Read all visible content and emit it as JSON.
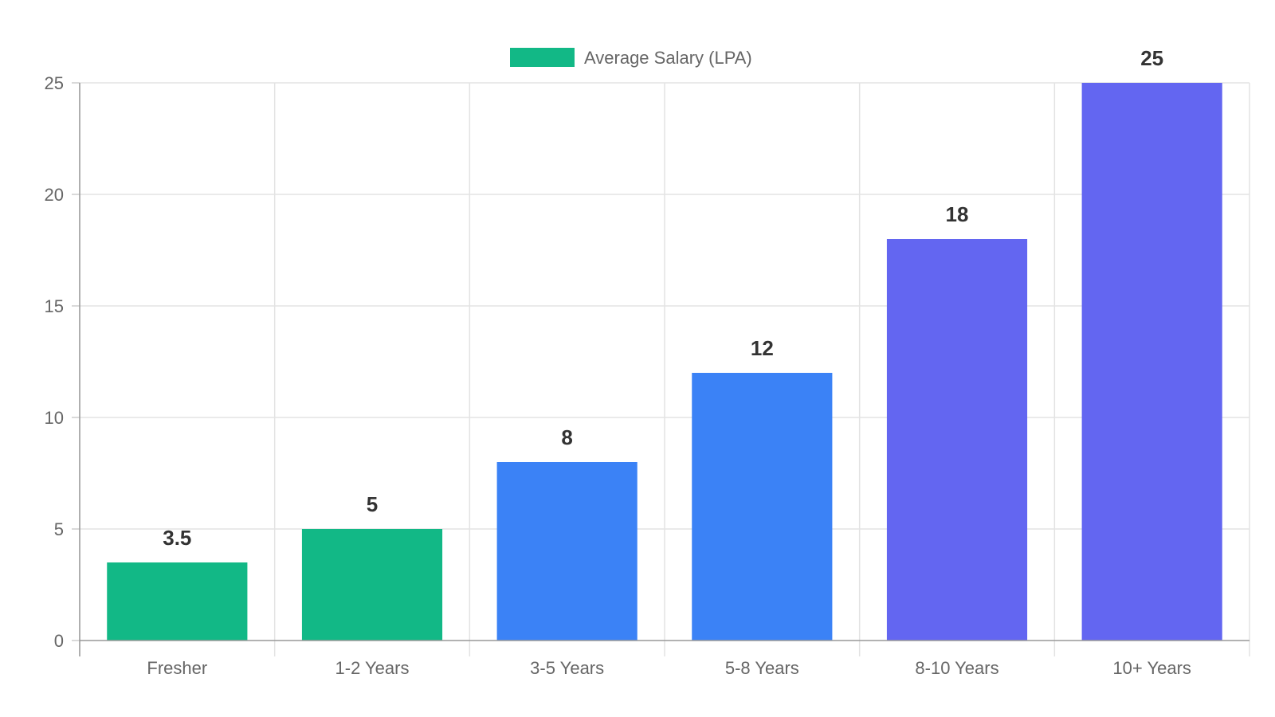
{
  "chart_data": {
    "type": "bar",
    "categories": [
      "Fresher",
      "1-2 Years",
      "3-5 Years",
      "5-8 Years",
      "8-10 Years",
      "10+ Years"
    ],
    "series": [
      {
        "name": "Average Salary (LPA)",
        "values": [
          3.5,
          5,
          8,
          12,
          18,
          25
        ]
      }
    ],
    "data_labels": [
      "3.5",
      "5",
      "8",
      "12",
      "18",
      "25"
    ],
    "bar_colors": [
      "#12b886",
      "#12b886",
      "#3b82f6",
      "#3b82f6",
      "#6366f1",
      "#6366f1"
    ],
    "legend_color": "#12b886",
    "title": "",
    "xlabel": "",
    "ylabel": "",
    "ylim": [
      0,
      25
    ],
    "yticks": [
      0,
      5,
      10,
      15,
      20,
      25
    ],
    "grid": true,
    "legend_position": "top"
  }
}
